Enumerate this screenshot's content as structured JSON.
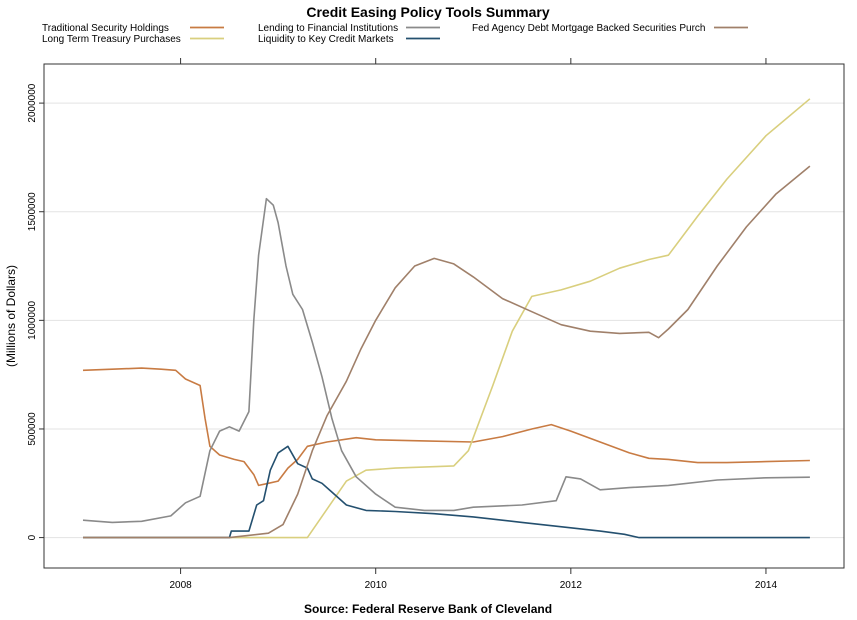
{
  "chart_data": {
    "type": "line",
    "title": "Credit Easing Policy Tools Summary",
    "xlabel": "Source: Federal Reserve Bank of Cleveland",
    "ylabel": "(Millions of Dollars)",
    "xlim": [
      2006.6,
      2014.8
    ],
    "ylim": [
      -140000,
      2180000
    ],
    "x_ticks": [
      2008,
      2010,
      2012,
      2014
    ],
    "y_ticks": [
      0,
      500000,
      1000000,
      1500000,
      2000000
    ],
    "grid": true,
    "legend_position": "top",
    "series": [
      {
        "name": "Traditional Security Holdings",
        "color": "#c87b43",
        "points": [
          [
            2007.0,
            770000
          ],
          [
            2007.3,
            775000
          ],
          [
            2007.6,
            780000
          ],
          [
            2007.8,
            775000
          ],
          [
            2007.95,
            770000
          ],
          [
            2008.05,
            730000
          ],
          [
            2008.2,
            700000
          ],
          [
            2008.25,
            550000
          ],
          [
            2008.3,
            420000
          ],
          [
            2008.4,
            380000
          ],
          [
            2008.55,
            360000
          ],
          [
            2008.65,
            350000
          ],
          [
            2008.7,
            320000
          ],
          [
            2008.75,
            290000
          ],
          [
            2008.8,
            240000
          ],
          [
            2008.9,
            250000
          ],
          [
            2009.0,
            260000
          ],
          [
            2009.1,
            320000
          ],
          [
            2009.2,
            360000
          ],
          [
            2009.3,
            420000
          ],
          [
            2009.5,
            440000
          ],
          [
            2009.8,
            460000
          ],
          [
            2010.0,
            450000
          ],
          [
            2010.5,
            445000
          ],
          [
            2011.0,
            440000
          ],
          [
            2011.3,
            465000
          ],
          [
            2011.6,
            500000
          ],
          [
            2011.8,
            520000
          ],
          [
            2012.0,
            490000
          ],
          [
            2012.3,
            440000
          ],
          [
            2012.6,
            390000
          ],
          [
            2012.8,
            365000
          ],
          [
            2013.0,
            360000
          ],
          [
            2013.3,
            345000
          ],
          [
            2013.6,
            345000
          ],
          [
            2014.0,
            350000
          ],
          [
            2014.45,
            355000
          ]
        ]
      },
      {
        "name": "Long Term Treasury Purchases",
        "color": "#d9cf7e",
        "points": [
          [
            2007.0,
            0
          ],
          [
            2009.3,
            0
          ],
          [
            2009.5,
            130000
          ],
          [
            2009.7,
            260000
          ],
          [
            2009.9,
            310000
          ],
          [
            2010.2,
            320000
          ],
          [
            2010.8,
            330000
          ],
          [
            2010.95,
            400000
          ],
          [
            2011.2,
            700000
          ],
          [
            2011.4,
            950000
          ],
          [
            2011.6,
            1110000
          ],
          [
            2011.9,
            1140000
          ],
          [
            2012.2,
            1180000
          ],
          [
            2012.5,
            1240000
          ],
          [
            2012.8,
            1280000
          ],
          [
            2013.0,
            1300000
          ],
          [
            2013.3,
            1480000
          ],
          [
            2013.6,
            1650000
          ],
          [
            2014.0,
            1850000
          ],
          [
            2014.45,
            2020000
          ]
        ]
      },
      {
        "name": "Lending to Financial Institutions",
        "color": "#8a8a8a",
        "points": [
          [
            2007.0,
            80000
          ],
          [
            2007.3,
            70000
          ],
          [
            2007.6,
            75000
          ],
          [
            2007.9,
            100000
          ],
          [
            2008.05,
            160000
          ],
          [
            2008.2,
            190000
          ],
          [
            2008.3,
            400000
          ],
          [
            2008.4,
            490000
          ],
          [
            2008.5,
            510000
          ],
          [
            2008.6,
            490000
          ],
          [
            2008.7,
            580000
          ],
          [
            2008.75,
            1000000
          ],
          [
            2008.8,
            1300000
          ],
          [
            2008.88,
            1560000
          ],
          [
            2008.95,
            1530000
          ],
          [
            2009.0,
            1450000
          ],
          [
            2009.08,
            1250000
          ],
          [
            2009.15,
            1120000
          ],
          [
            2009.25,
            1050000
          ],
          [
            2009.35,
            900000
          ],
          [
            2009.45,
            740000
          ],
          [
            2009.55,
            550000
          ],
          [
            2009.65,
            400000
          ],
          [
            2009.8,
            280000
          ],
          [
            2010.0,
            200000
          ],
          [
            2010.2,
            140000
          ],
          [
            2010.5,
            125000
          ],
          [
            2010.8,
            125000
          ],
          [
            2011.0,
            140000
          ],
          [
            2011.5,
            150000
          ],
          [
            2011.85,
            170000
          ],
          [
            2011.95,
            280000
          ],
          [
            2012.1,
            270000
          ],
          [
            2012.3,
            220000
          ],
          [
            2012.6,
            230000
          ],
          [
            2013.0,
            240000
          ],
          [
            2013.5,
            265000
          ],
          [
            2014.0,
            275000
          ],
          [
            2014.45,
            278000
          ]
        ]
      },
      {
        "name": "Liquidity to Key Credit Markets",
        "color": "#24506f",
        "points": [
          [
            2007.0,
            0
          ],
          [
            2008.5,
            0
          ],
          [
            2008.52,
            30000
          ],
          [
            2008.7,
            30000
          ],
          [
            2008.78,
            150000
          ],
          [
            2008.85,
            170000
          ],
          [
            2008.92,
            310000
          ],
          [
            2009.0,
            390000
          ],
          [
            2009.1,
            420000
          ],
          [
            2009.2,
            340000
          ],
          [
            2009.3,
            320000
          ],
          [
            2009.35,
            270000
          ],
          [
            2009.45,
            250000
          ],
          [
            2009.55,
            210000
          ],
          [
            2009.7,
            150000
          ],
          [
            2009.9,
            125000
          ],
          [
            2010.2,
            120000
          ],
          [
            2010.6,
            110000
          ],
          [
            2011.0,
            95000
          ],
          [
            2011.5,
            70000
          ],
          [
            2012.0,
            45000
          ],
          [
            2012.3,
            30000
          ],
          [
            2012.55,
            15000
          ],
          [
            2012.7,
            0
          ],
          [
            2014.45,
            0
          ]
        ]
      },
      {
        "name": "Fed Agency Debt  Mortgage Backed Securities Purch",
        "color": "#a0806a",
        "points": [
          [
            2007.0,
            0
          ],
          [
            2008.5,
            0
          ],
          [
            2008.9,
            20000
          ],
          [
            2009.05,
            60000
          ],
          [
            2009.2,
            200000
          ],
          [
            2009.35,
            400000
          ],
          [
            2009.5,
            560000
          ],
          [
            2009.7,
            720000
          ],
          [
            2009.85,
            870000
          ],
          [
            2010.0,
            1000000
          ],
          [
            2010.2,
            1150000
          ],
          [
            2010.4,
            1250000
          ],
          [
            2010.6,
            1285000
          ],
          [
            2010.8,
            1260000
          ],
          [
            2011.0,
            1200000
          ],
          [
            2011.3,
            1100000
          ],
          [
            2011.6,
            1040000
          ],
          [
            2011.9,
            980000
          ],
          [
            2012.2,
            950000
          ],
          [
            2012.5,
            940000
          ],
          [
            2012.8,
            945000
          ],
          [
            2012.9,
            920000
          ],
          [
            2013.0,
            960000
          ],
          [
            2013.2,
            1050000
          ],
          [
            2013.5,
            1250000
          ],
          [
            2013.8,
            1430000
          ],
          [
            2014.1,
            1580000
          ],
          [
            2014.45,
            1710000
          ]
        ]
      }
    ]
  }
}
